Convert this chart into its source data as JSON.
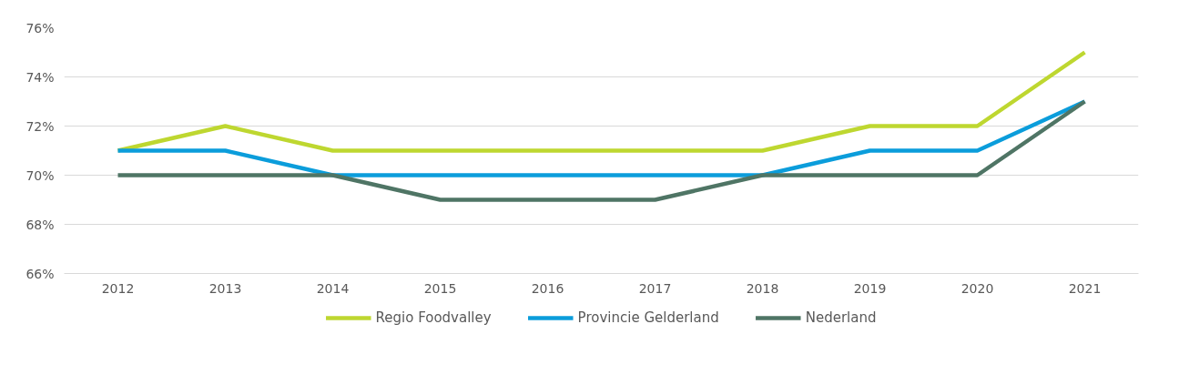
{
  "chart_data": {
    "type": "line",
    "categories": [
      "2012",
      "2013",
      "2014",
      "2015",
      "2016",
      "2017",
      "2018",
      "2019",
      "2020",
      "2021"
    ],
    "series": [
      {
        "name": "Regio Foodvalley",
        "color": "#bed730",
        "values": [
          71,
          72,
          71,
          71,
          71,
          71,
          71,
          72,
          72,
          75
        ]
      },
      {
        "name": "Provincie Gelderland",
        "color": "#0b9ddb",
        "values": [
          71,
          71,
          70,
          70,
          70,
          70,
          70,
          71,
          71,
          73
        ]
      },
      {
        "name": "Nederland",
        "color": "#4f7565",
        "values": [
          70,
          70,
          70,
          69,
          69,
          69,
          70,
          70,
          70,
          73
        ]
      }
    ],
    "ylim": [
      66,
      76
    ],
    "yticks": [
      {
        "value": 66,
        "label": "66%"
      },
      {
        "value": 68,
        "label": "68%"
      },
      {
        "value": 70,
        "label": "70%"
      },
      {
        "value": 72,
        "label": "72%"
      },
      {
        "value": 74,
        "label": "74%"
      },
      {
        "value": 76,
        "label": "76%"
      }
    ],
    "grid": "y",
    "legend": "bottom",
    "marker": "none",
    "line_style": "solid"
  }
}
